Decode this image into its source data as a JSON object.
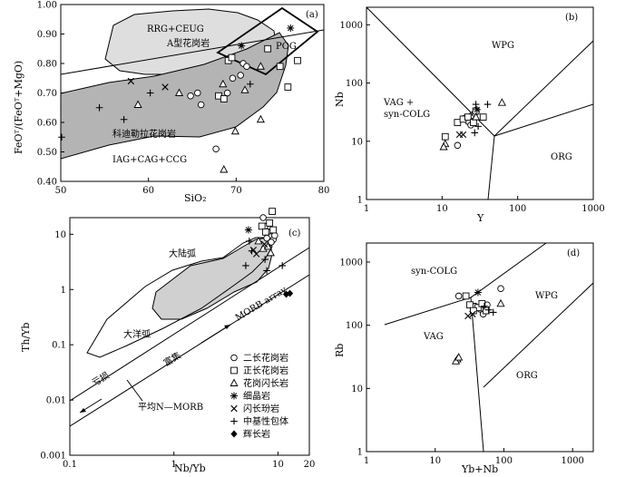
{
  "chart_data": [
    {
      "panel": "(a)",
      "type": "scatter",
      "xlabel": "SiO₂",
      "ylabel": "FeOᵀ/(FeOᵀ+MgO)",
      "xlim": [
        50,
        80
      ],
      "ylim": [
        0.4,
        1.0
      ],
      "xticks": [
        "50",
        "60",
        "70",
        "80"
      ],
      "yticks": [
        "0.40",
        "0.50",
        "0.60",
        "0.70",
        "0.80",
        "0.90",
        "1.00"
      ],
      "labels": [
        "RRG+CEUG",
        "A型花岗岩",
        "POG",
        "科迪勒拉花岗岩",
        "IAG+CAG+CCG"
      ],
      "points": [
        {
          "m": "circle",
          "x": 64.8,
          "y": 0.69
        },
        {
          "m": "circle",
          "x": 65.6,
          "y": 0.7
        },
        {
          "m": "circle",
          "x": 66.0,
          "y": 0.66
        },
        {
          "m": "circle",
          "x": 69.0,
          "y": 0.7
        },
        {
          "m": "circle",
          "x": 70.5,
          "y": 0.76
        },
        {
          "m": "circle",
          "x": 70.8,
          "y": 0.8
        },
        {
          "m": "circle",
          "x": 71.2,
          "y": 0.79
        },
        {
          "m": "circle",
          "x": 67.7,
          "y": 0.51
        },
        {
          "m": "circle",
          "x": 69.6,
          "y": 0.75
        },
        {
          "m": "square",
          "x": 69.1,
          "y": 0.81
        },
        {
          "m": "square",
          "x": 69.5,
          "y": 0.82
        },
        {
          "m": "square",
          "x": 68.0,
          "y": 0.69
        },
        {
          "m": "square",
          "x": 68.6,
          "y": 0.68
        },
        {
          "m": "square",
          "x": 73.6,
          "y": 0.85
        },
        {
          "m": "square",
          "x": 75.0,
          "y": 0.79
        },
        {
          "m": "square",
          "x": 75.9,
          "y": 0.72
        },
        {
          "m": "square",
          "x": 77.0,
          "y": 0.81
        },
        {
          "m": "triangle",
          "x": 58.8,
          "y": 0.66
        },
        {
          "m": "triangle",
          "x": 63.5,
          "y": 0.7
        },
        {
          "m": "triangle",
          "x": 68.5,
          "y": 0.73
        },
        {
          "m": "triangle",
          "x": 71.0,
          "y": 0.71
        },
        {
          "m": "triangle",
          "x": 72.8,
          "y": 0.61
        },
        {
          "m": "triangle",
          "x": 69.9,
          "y": 0.57
        },
        {
          "m": "triangle",
          "x": 68.6,
          "y": 0.44
        },
        {
          "m": "triangle",
          "x": 72.8,
          "y": 0.79
        },
        {
          "m": "star",
          "x": 76.2,
          "y": 0.92
        },
        {
          "m": "star",
          "x": 70.6,
          "y": 0.86
        },
        {
          "m": "cross",
          "x": 58.0,
          "y": 0.74
        },
        {
          "m": "cross",
          "x": 61.9,
          "y": 0.72
        },
        {
          "m": "plus",
          "x": 50.1,
          "y": 0.55
        },
        {
          "m": "plus",
          "x": 54.4,
          "y": 0.65
        },
        {
          "m": "plus",
          "x": 57.2,
          "y": 0.61
        },
        {
          "m": "plus",
          "x": 60.2,
          "y": 0.7
        },
        {
          "m": "plus",
          "x": 71.6,
          "y": 0.73
        }
      ]
    },
    {
      "panel": "(b)",
      "type": "scatter",
      "scale": "log-log",
      "xlabel": "Y",
      "ylabel": "Nb",
      "xlim": [
        1,
        1000
      ],
      "ylim": [
        1,
        2000
      ],
      "xticks": [
        "1",
        "10",
        "100",
        "1000"
      ],
      "yticks": [
        "1",
        "10",
        "100",
        "1000"
      ],
      "labels": [
        "WPG",
        "VAG +",
        "syn-COLG",
        "ORG"
      ],
      "points": [
        {
          "m": "circle",
          "x": 20,
          "y": 25
        },
        {
          "m": "circle",
          "x": 22,
          "y": 22
        },
        {
          "m": "circle",
          "x": 25,
          "y": 28
        },
        {
          "m": "circle",
          "x": 27,
          "y": 30
        },
        {
          "m": "circle",
          "x": 24,
          "y": 19
        },
        {
          "m": "circle",
          "x": 16,
          "y": 8.5
        },
        {
          "m": "square",
          "x": 11,
          "y": 12
        },
        {
          "m": "square",
          "x": 16,
          "y": 21
        },
        {
          "m": "square",
          "x": 19,
          "y": 24
        },
        {
          "m": "square",
          "x": 22,
          "y": 26
        },
        {
          "m": "square",
          "x": 26,
          "y": 21
        },
        {
          "m": "square",
          "x": 35,
          "y": 26
        },
        {
          "m": "square",
          "x": 28,
          "y": 33
        },
        {
          "m": "triangle",
          "x": 11,
          "y": 9
        },
        {
          "m": "triangle",
          "x": 10.5,
          "y": 8
        },
        {
          "m": "triangle",
          "x": 28,
          "y": 26
        },
        {
          "m": "triangle",
          "x": 62,
          "y": 46
        },
        {
          "m": "star",
          "x": 29,
          "y": 35
        },
        {
          "m": "cross",
          "x": 17,
          "y": 13
        },
        {
          "m": "cross",
          "x": 19,
          "y": 13
        },
        {
          "m": "plus",
          "x": 28,
          "y": 43
        },
        {
          "m": "plus",
          "x": 40,
          "y": 43
        },
        {
          "m": "plus",
          "x": 30,
          "y": 18
        },
        {
          "m": "plus",
          "x": 27,
          "y": 14
        }
      ]
    },
    {
      "panel": "(c)",
      "type": "scatter",
      "scale": "log-log",
      "xlabel": "Nb/Yb",
      "ylabel": "Th/Yb",
      "xlim": [
        0.1,
        20
      ],
      "ylim": [
        0.001,
        20
      ],
      "xticks": [
        "0.1",
        "1",
        "10",
        "20"
      ],
      "yticks": [
        "0.001",
        "0.01",
        "0.1",
        "1",
        "10"
      ],
      "labels": [
        "大陆弧",
        "大洋弧",
        "MORB array",
        "富集",
        "亏损",
        "平均N—MORB"
      ],
      "legend": [
        "二长花岗岩",
        "正长花岗岩",
        "花岗闪长岩",
        "细晶岩",
        "闪长玢岩",
        "中基性包体",
        "辉长岩"
      ],
      "points": [
        {
          "m": "circle",
          "x": 7.2,
          "y": 20
        },
        {
          "m": "circle",
          "x": 7.5,
          "y": 14
        },
        {
          "m": "circle",
          "x": 8.0,
          "y": 11
        },
        {
          "m": "circle",
          "x": 8.5,
          "y": 9
        },
        {
          "m": "circle",
          "x": 9.0,
          "y": 8
        },
        {
          "m": "circle",
          "x": 7.8,
          "y": 8.5
        },
        {
          "m": "circle",
          "x": 8.6,
          "y": 7.2
        },
        {
          "m": "circle",
          "x": 9.3,
          "y": 9.5
        },
        {
          "m": "square",
          "x": 8.8,
          "y": 26
        },
        {
          "m": "square",
          "x": 7.0,
          "y": 14
        },
        {
          "m": "square",
          "x": 8.3,
          "y": 16
        },
        {
          "m": "square",
          "x": 9.0,
          "y": 12
        },
        {
          "m": "square",
          "x": 7.6,
          "y": 11
        },
        {
          "m": "triangle",
          "x": 6.5,
          "y": 7.5
        },
        {
          "m": "triangle",
          "x": 7.2,
          "y": 5.5
        },
        {
          "m": "triangle",
          "x": 8.0,
          "y": 6
        },
        {
          "m": "triangle",
          "x": 8.5,
          "y": 4.6
        },
        {
          "m": "star",
          "x": 5.2,
          "y": 12
        },
        {
          "m": "cross",
          "x": 5.8,
          "y": 5.2
        },
        {
          "m": "cross",
          "x": 6.2,
          "y": 4.4
        },
        {
          "m": "cross",
          "x": 7.4,
          "y": 6.6
        },
        {
          "m": "plus",
          "x": 4.9,
          "y": 2.7
        },
        {
          "m": "plus",
          "x": 5.3,
          "y": 7.5
        },
        {
          "m": "plus",
          "x": 5.6,
          "y": 5
        },
        {
          "m": "plus",
          "x": 7.5,
          "y": 3.5
        },
        {
          "m": "plus",
          "x": 7.8,
          "y": 2.2
        },
        {
          "m": "plus",
          "x": 11,
          "y": 2.7
        },
        {
          "m": "diamond",
          "x": 12,
          "y": 0.82
        },
        {
          "m": "diamond",
          "x": 13,
          "y": 0.85
        }
      ]
    },
    {
      "panel": "(d)",
      "type": "scatter",
      "scale": "log-log",
      "xlabel": "Yb+Nb",
      "ylabel": "Rb",
      "xlim": [
        1,
        2000
      ],
      "ylim": [
        1,
        2000
      ],
      "xticks": [
        "1",
        "10",
        "100",
        "1000"
      ],
      "yticks": [
        "1",
        "10",
        "100",
        "1000"
      ],
      "labels": [
        "syn-COLG",
        "WPG",
        "VAG",
        "ORG"
      ],
      "points": [
        {
          "m": "circle",
          "x": 22,
          "y": 290
        },
        {
          "m": "circle",
          "x": 38,
          "y": 200
        },
        {
          "m": "circle",
          "x": 57,
          "y": 210
        },
        {
          "m": "circle",
          "x": 45,
          "y": 180
        },
        {
          "m": "circle",
          "x": 90,
          "y": 380
        },
        {
          "m": "circle",
          "x": 50,
          "y": 150
        },
        {
          "m": "square",
          "x": 28,
          "y": 290
        },
        {
          "m": "square",
          "x": 32,
          "y": 210
        },
        {
          "m": "square",
          "x": 42,
          "y": 190
        },
        {
          "m": "square",
          "x": 48,
          "y": 220
        },
        {
          "m": "square",
          "x": 55,
          "y": 170
        },
        {
          "m": "square",
          "x": 36,
          "y": 170
        },
        {
          "m": "triangle",
          "x": 21,
          "y": 29
        },
        {
          "m": "triangle",
          "x": 20,
          "y": 27
        },
        {
          "m": "triangle",
          "x": 22,
          "y": 31
        },
        {
          "m": "triangle",
          "x": 90,
          "y": 220
        },
        {
          "m": "star",
          "x": 42,
          "y": 330
        },
        {
          "m": "cross",
          "x": 30,
          "y": 140
        },
        {
          "m": "cross",
          "x": 35,
          "y": 150
        },
        {
          "m": "plus",
          "x": 52,
          "y": 200
        },
        {
          "m": "plus",
          "x": 60,
          "y": 175
        },
        {
          "m": "plus",
          "x": 70,
          "y": 160
        }
      ]
    }
  ]
}
